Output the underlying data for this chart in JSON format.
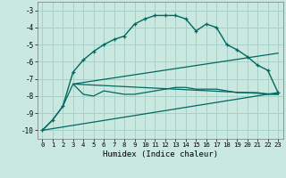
{
  "xlabel": "Humidex (Indice chaleur)",
  "background_color": "#c8e8e0",
  "grid_color": "#a8d0c8",
  "line_color": "#006860",
  "xlim": [
    -0.5,
    23.5
  ],
  "ylim": [
    -10.5,
    -2.5
  ],
  "yticks": [
    -10,
    -9,
    -8,
    -7,
    -6,
    -5,
    -4,
    -3
  ],
  "xticks": [
    0,
    1,
    2,
    3,
    4,
    5,
    6,
    7,
    8,
    9,
    10,
    11,
    12,
    13,
    14,
    15,
    16,
    17,
    18,
    19,
    20,
    21,
    22,
    23
  ],
  "curve1_x": [
    0,
    1,
    2,
    3,
    4,
    5,
    6,
    7,
    8,
    9,
    10,
    11,
    12,
    13,
    14,
    15,
    16,
    17,
    18,
    19,
    20,
    21,
    22,
    23
  ],
  "curve1_y": [
    -10.0,
    -9.4,
    -8.6,
    -6.6,
    -5.9,
    -5.4,
    -5.0,
    -4.7,
    -4.5,
    -3.8,
    -3.5,
    -3.3,
    -3.3,
    -3.3,
    -3.5,
    -4.2,
    -3.8,
    -4.0,
    -5.0,
    -5.3,
    -5.7,
    -6.2,
    -6.5,
    -7.8
  ],
  "curve2_x": [
    0,
    1,
    2,
    3,
    4,
    5,
    6,
    7,
    8,
    9,
    10,
    11,
    12,
    13,
    14,
    15,
    16,
    17,
    18,
    19,
    20,
    21,
    22,
    23
  ],
  "curve2_y": [
    -10.0,
    -9.4,
    -8.6,
    -7.3,
    -7.9,
    -8.0,
    -7.7,
    -7.8,
    -7.9,
    -7.9,
    -7.8,
    -7.7,
    -7.6,
    -7.5,
    -7.5,
    -7.6,
    -7.6,
    -7.6,
    -7.7,
    -7.8,
    -7.8,
    -7.8,
    -7.9,
    -7.9
  ],
  "line1_x": [
    3,
    23
  ],
  "line1_y": [
    -7.3,
    -7.9
  ],
  "line2_x": [
    3,
    23
  ],
  "line2_y": [
    -7.3,
    -5.5
  ],
  "line3_x": [
    0,
    23
  ],
  "line3_y": [
    -10.0,
    -7.8
  ]
}
